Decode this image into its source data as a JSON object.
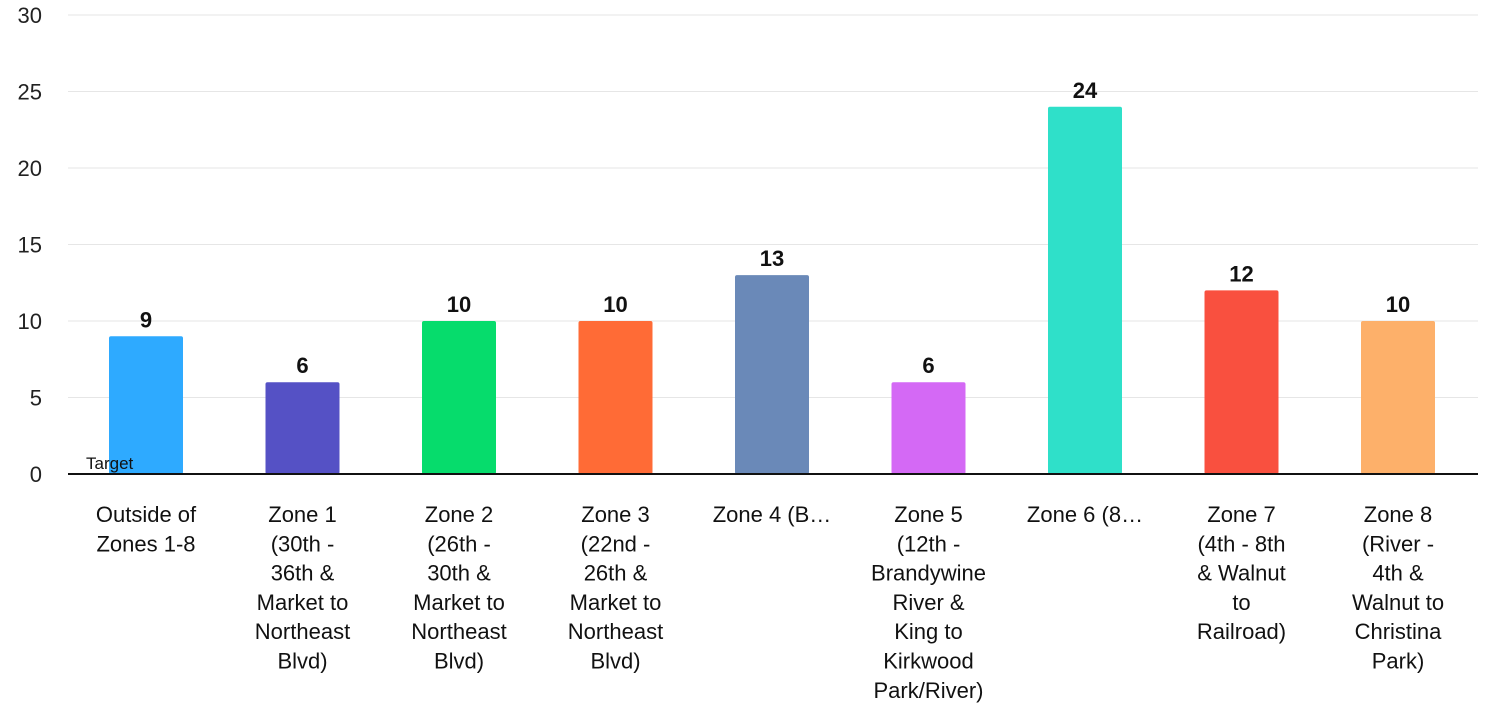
{
  "chart_data": {
    "type": "bar",
    "categories": [
      [
        "Outside of",
        "Zones 1-8"
      ],
      [
        "Zone 1",
        "(30th -",
        "36th &",
        "Market to",
        "Northeast",
        "Blvd)"
      ],
      [
        "Zone 2",
        "(26th -",
        "30th &",
        "Market to",
        "Northeast",
        "Blvd)"
      ],
      [
        "Zone 3",
        "(22nd -",
        "26th &",
        "Market to",
        "Northeast",
        "Blvd)"
      ],
      [
        "Zone 4 (B…"
      ],
      [
        "Zone 5",
        "(12th -",
        "Brandywine",
        "River &",
        "King to",
        "Kirkwood",
        "Park/River)"
      ],
      [
        "Zone 6 (8…"
      ],
      [
        "Zone 7",
        "(4th - 8th",
        "& Walnut",
        "to",
        "Railroad)"
      ],
      [
        "Zone 8",
        "(River -",
        "4th &",
        "Walnut to",
        "Christina",
        "Park)"
      ]
    ],
    "values": [
      9,
      6,
      10,
      10,
      13,
      6,
      24,
      12,
      10
    ],
    "colors": [
      "#2eaaff",
      "#5551c5",
      "#06dc6c",
      "#ff6b36",
      "#6a89b8",
      "#d469f5",
      "#2fe0c9",
      "#f9503f",
      "#fdb06a"
    ],
    "ylim": [
      0,
      30
    ],
    "yticks": [
      "0",
      "5",
      "10",
      "15",
      "20",
      "25",
      "30"
    ],
    "grid": true,
    "annotation": "Target"
  }
}
